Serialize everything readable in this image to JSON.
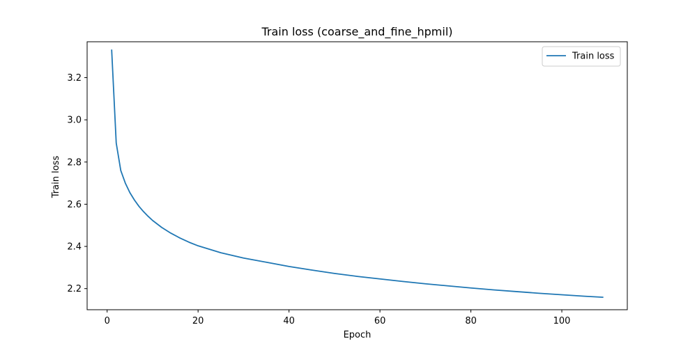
{
  "chart_data": {
    "type": "line",
    "title": "Train loss (coarse_and_fine_hpmil)",
    "xlabel": "Epoch",
    "ylabel": "Train loss",
    "xlim": [
      -4.4,
      114.4
    ],
    "ylim": [
      2.1,
      3.37
    ],
    "xticks": [
      0,
      20,
      40,
      60,
      80,
      100
    ],
    "yticks": [
      2.2,
      2.4,
      2.6,
      2.8,
      3.0,
      3.2
    ],
    "grid": false,
    "legend_position": "top-right",
    "series": [
      {
        "name": "Train loss",
        "color": "#1f77b4",
        "x": [
          1,
          2,
          3,
          4,
          5,
          6,
          7,
          8,
          9,
          10,
          12,
          14,
          16,
          18,
          20,
          25,
          30,
          35,
          40,
          45,
          50,
          55,
          60,
          65,
          70,
          75,
          80,
          85,
          90,
          95,
          100,
          105,
          109
        ],
        "y": [
          3.33,
          2.89,
          2.76,
          2.7,
          2.655,
          2.62,
          2.59,
          2.565,
          2.543,
          2.523,
          2.49,
          2.463,
          2.44,
          2.42,
          2.403,
          2.37,
          2.345,
          2.325,
          2.305,
          2.288,
          2.272,
          2.258,
          2.246,
          2.234,
          2.223,
          2.213,
          2.203,
          2.194,
          2.186,
          2.178,
          2.171,
          2.164,
          2.159
        ]
      }
    ]
  }
}
